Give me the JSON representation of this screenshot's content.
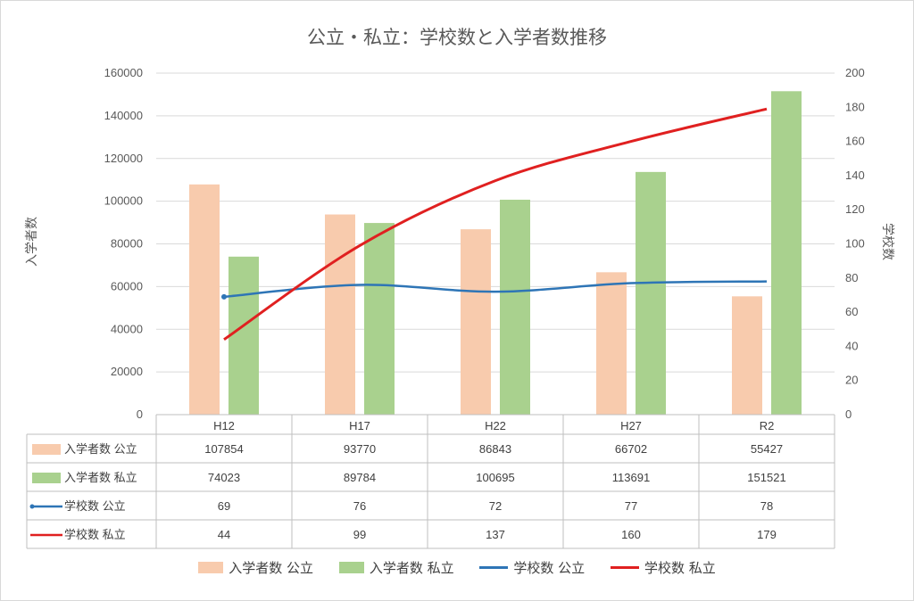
{
  "chart_data": {
    "type": "bar",
    "title": "公立・私立：学校数と入学者数推移",
    "categories": [
      "H12",
      "H17",
      "H22",
      "H27",
      "R2"
    ],
    "ylabel": "入学者数",
    "y2label": "学校数",
    "ylim": [
      0,
      160000
    ],
    "y2lim": [
      0,
      200
    ],
    "yticks": [
      "0",
      "20000",
      "40000",
      "60000",
      "80000",
      "100000",
      "120000",
      "140000",
      "160000"
    ],
    "y2ticks": [
      "0",
      "20",
      "40",
      "60",
      "80",
      "100",
      "120",
      "140",
      "160",
      "180",
      "200"
    ],
    "legend_position": "bottom",
    "data_table": true,
    "series": [
      {
        "name": "入学者数 公立",
        "kind": "bar",
        "axis": "left",
        "color": "#f8cbad",
        "values": [
          107854,
          93770,
          86843,
          66702,
          55427
        ]
      },
      {
        "name": "入学者数 私立",
        "kind": "bar",
        "axis": "left",
        "color": "#a9d18e",
        "values": [
          74023,
          89784,
          100695,
          113691,
          151521
        ]
      },
      {
        "name": "学校数 公立",
        "kind": "line",
        "axis": "right",
        "color": "#2e75b6",
        "values": [
          69,
          76,
          72,
          77,
          78
        ]
      },
      {
        "name": "学校数 私立",
        "kind": "line",
        "axis": "right",
        "color": "#e02020",
        "values": [
          44,
          99,
          137,
          160,
          179
        ]
      }
    ]
  }
}
